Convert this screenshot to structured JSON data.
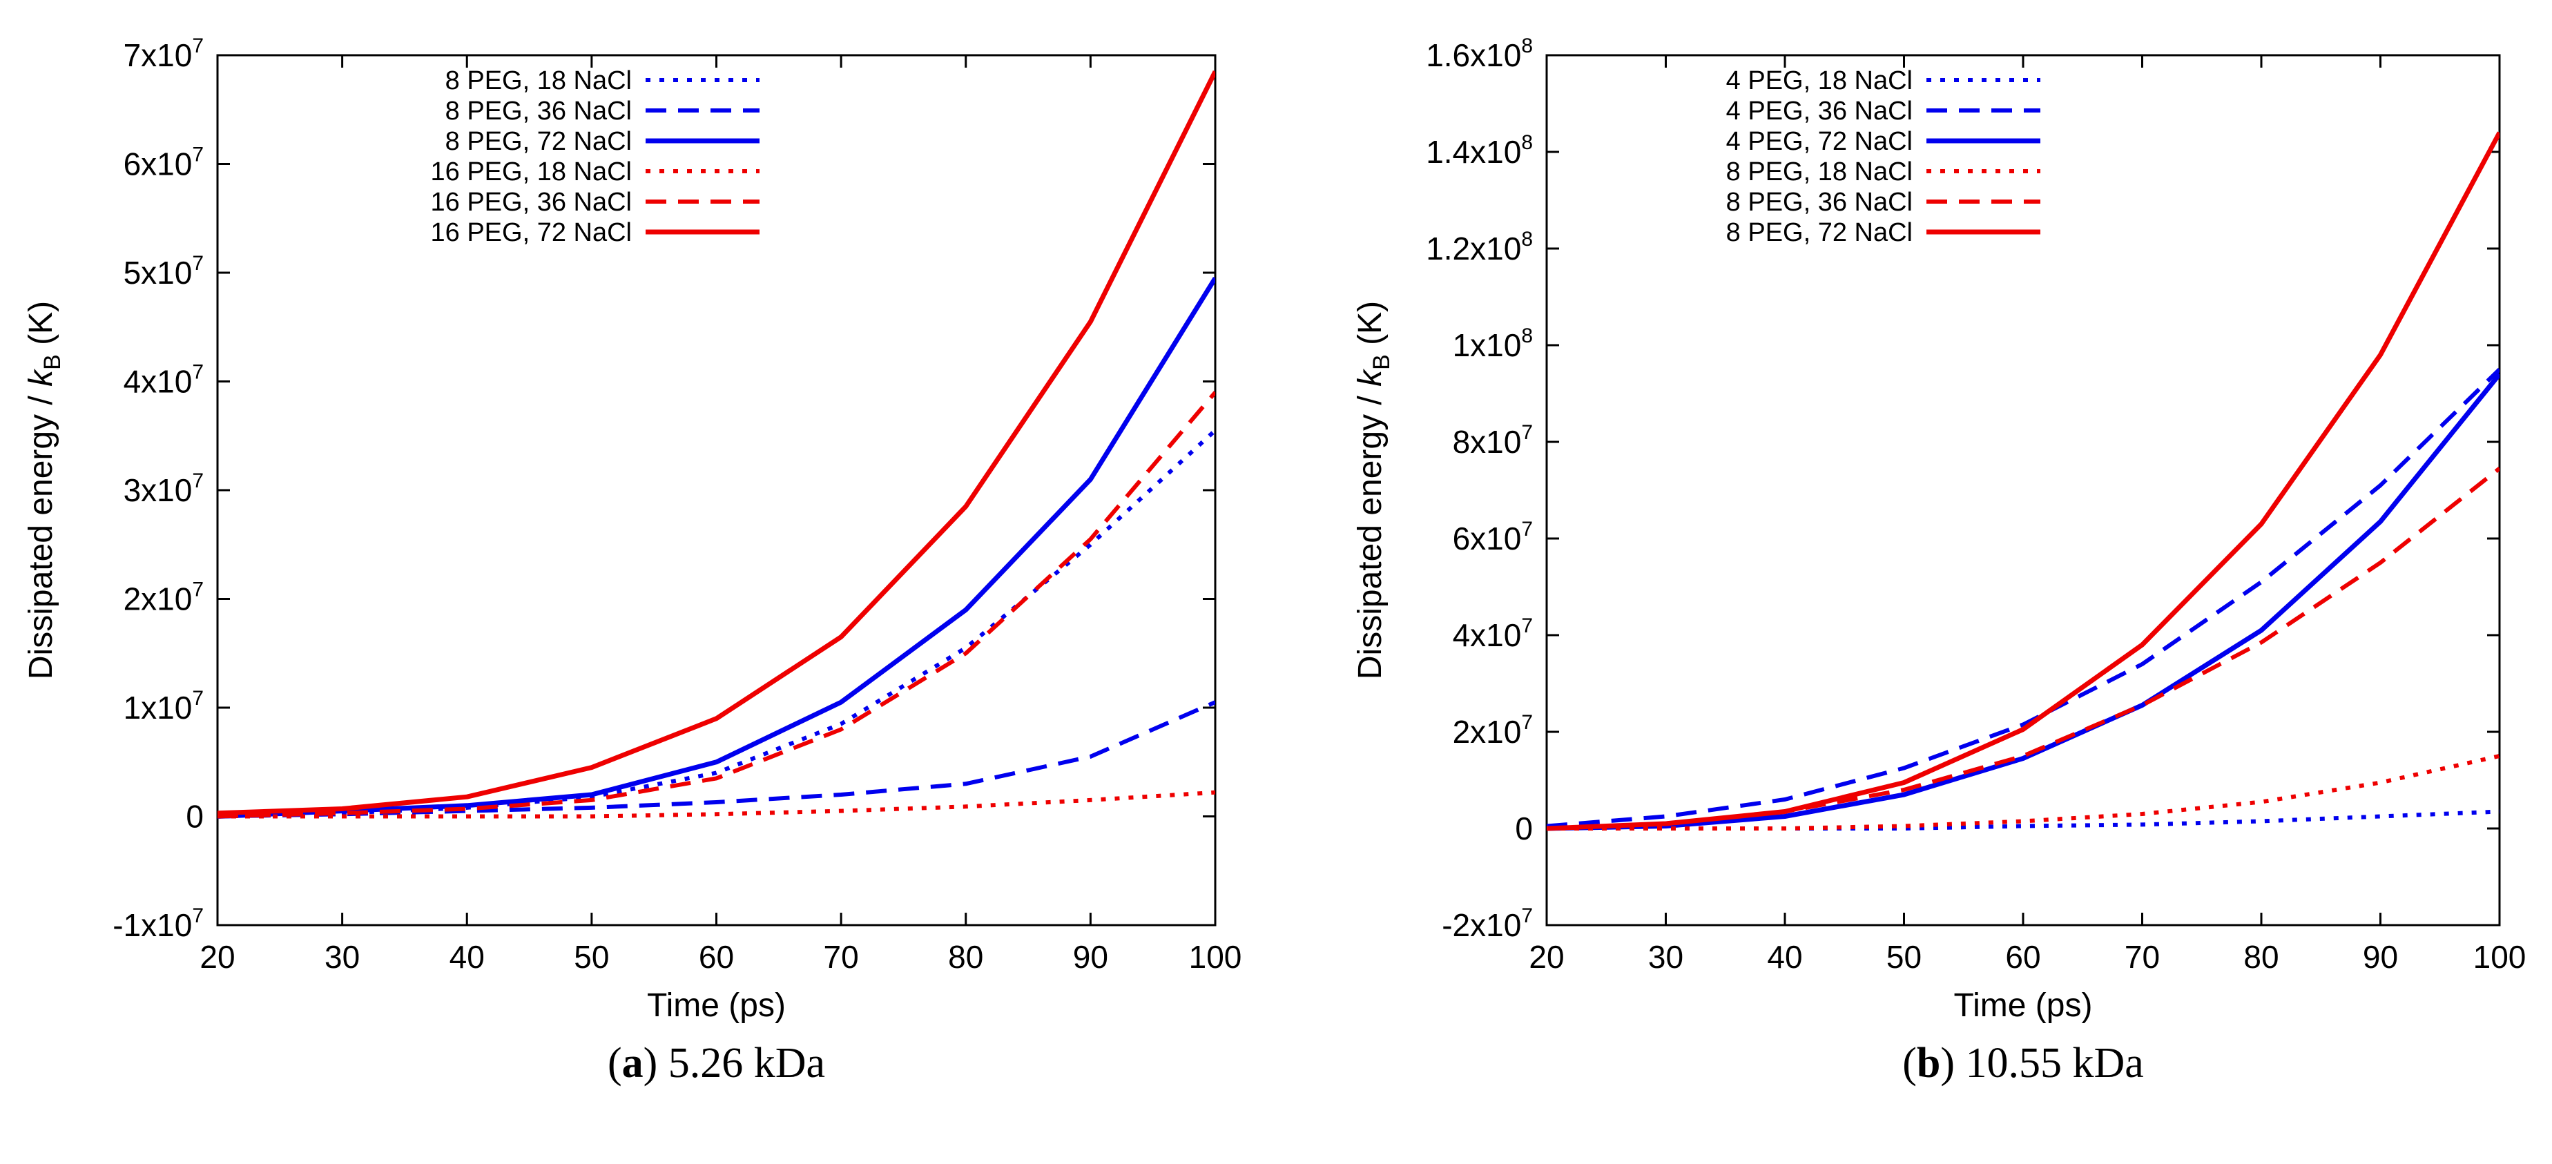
{
  "chart_data": [
    {
      "type": "line",
      "caption": {
        "letter": "a",
        "text": "5.26 kDa"
      },
      "xlabel": "Time (ps)",
      "ylabel_main": "Dissipated energy / ",
      "ylabel_k": "k",
      "ylabel_sub": "B",
      "ylabel_unit": " (K)",
      "xlim": [
        20,
        100
      ],
      "ylim": [
        -10000000,
        70000000
      ],
      "xticks": [
        20,
        30,
        40,
        50,
        60,
        70,
        80,
        90,
        100
      ],
      "yticks": [
        {
          "value": -10000000,
          "mantissa": "-1x10",
          "exp": "7"
        },
        {
          "value": 0,
          "mantissa": "0",
          "exp": ""
        },
        {
          "value": 10000000,
          "mantissa": "1x10",
          "exp": "7"
        },
        {
          "value": 20000000,
          "mantissa": "2x10",
          "exp": "7"
        },
        {
          "value": 30000000,
          "mantissa": "3x10",
          "exp": "7"
        },
        {
          "value": 40000000,
          "mantissa": "4x10",
          "exp": "7"
        },
        {
          "value": 50000000,
          "mantissa": "5x10",
          "exp": "7"
        },
        {
          "value": 60000000,
          "mantissa": "6x10",
          "exp": "7"
        },
        {
          "value": 70000000,
          "mantissa": "7x10",
          "exp": "7"
        }
      ],
      "grid": false,
      "legend_position": "top-left",
      "x": [
        20,
        30,
        40,
        50,
        60,
        70,
        80,
        90,
        100
      ],
      "series": [
        {
          "name": "8 PEG, 18 NaCl",
          "color": "#0000ee",
          "style": "dotted",
          "values": [
            0,
            300000,
            800000,
            1800000,
            4000000,
            8500000,
            15500000,
            25000000,
            35500000
          ]
        },
        {
          "name": "8 PEG, 36 NaCl",
          "color": "#0000ee",
          "style": "dashed",
          "values": [
            0,
            200000,
            500000,
            800000,
            1300000,
            2000000,
            3000000,
            5500000,
            10500000
          ]
        },
        {
          "name": "8 PEG, 72 NaCl",
          "color": "#0000ee",
          "style": "solid",
          "values": [
            0,
            500000,
            1000000,
            2000000,
            5000000,
            10500000,
            19000000,
            31000000,
            49500000
          ]
        },
        {
          "name": "16 PEG, 18 NaCl",
          "color": "#ee0000",
          "style": "dotted",
          "values": [
            0,
            0,
            0,
            0,
            200000,
            500000,
            900000,
            1500000,
            2200000
          ]
        },
        {
          "name": "16 PEG, 36 NaCl",
          "color": "#ee0000",
          "style": "dashed",
          "values": [
            0,
            300000,
            700000,
            1500000,
            3500000,
            8000000,
            15000000,
            25500000,
            39000000
          ]
        },
        {
          "name": "16 PEG, 72 NaCl",
          "color": "#ee0000",
          "style": "solid",
          "values": [
            300000,
            700000,
            1800000,
            4500000,
            9000000,
            16500000,
            28500000,
            45500000,
            68500000
          ]
        }
      ]
    },
    {
      "type": "line",
      "caption": {
        "letter": "b",
        "text": "10.55 kDa"
      },
      "xlabel": "Time (ps)",
      "ylabel_main": "Dissipated energy / ",
      "ylabel_k": "k",
      "ylabel_sub": "B",
      "ylabel_unit": " (K)",
      "xlim": [
        20,
        100
      ],
      "ylim": [
        -20000000,
        160000000
      ],
      "xticks": [
        20,
        30,
        40,
        50,
        60,
        70,
        80,
        90,
        100
      ],
      "yticks": [
        {
          "value": -20000000,
          "mantissa": "-2x10",
          "exp": "7"
        },
        {
          "value": 0,
          "mantissa": "0",
          "exp": ""
        },
        {
          "value": 20000000,
          "mantissa": "2x10",
          "exp": "7"
        },
        {
          "value": 40000000,
          "mantissa": "4x10",
          "exp": "7"
        },
        {
          "value": 60000000,
          "mantissa": "6x10",
          "exp": "7"
        },
        {
          "value": 80000000,
          "mantissa": "8x10",
          "exp": "7"
        },
        {
          "value": 100000000,
          "mantissa": "1x10",
          "exp": "8"
        },
        {
          "value": 120000000,
          "mantissa": "1.2x10",
          "exp": "8"
        },
        {
          "value": 140000000,
          "mantissa": "1.4x10",
          "exp": "8"
        },
        {
          "value": 160000000,
          "mantissa": "1.6x10",
          "exp": "8"
        }
      ],
      "grid": false,
      "legend_position": "top-left",
      "x": [
        20,
        30,
        40,
        50,
        60,
        70,
        80,
        90,
        100
      ],
      "series": [
        {
          "name": "4 PEG, 18 NaCl",
          "color": "#0000ee",
          "style": "dotted",
          "values": [
            0,
            0,
            0,
            0,
            500000,
            800000,
            1500000,
            2500000,
            3500000
          ]
        },
        {
          "name": "4 PEG, 36 NaCl",
          "color": "#0000ee",
          "style": "dashed",
          "values": [
            500000,
            2500000,
            6000000,
            12500000,
            21500000,
            34000000,
            51000000,
            71000000,
            95000000
          ]
        },
        {
          "name": "4 PEG, 72 NaCl",
          "color": "#0000ee",
          "style": "solid",
          "values": [
            0,
            500000,
            2500000,
            7000000,
            14500000,
            25500000,
            41000000,
            63500000,
            94000000
          ]
        },
        {
          "name": "8 PEG, 18 NaCl",
          "color": "#ee0000",
          "style": "dotted",
          "values": [
            0,
            0,
            0,
            500000,
            1500000,
            3000000,
            5500000,
            9500000,
            15000000
          ]
        },
        {
          "name": "8 PEG, 36 NaCl",
          "color": "#ee0000",
          "style": "dashed",
          "values": [
            0,
            1000000,
            3500000,
            8000000,
            15000000,
            25500000,
            38500000,
            55000000,
            74500000
          ]
        },
        {
          "name": "8 PEG, 72 NaCl",
          "color": "#ee0000",
          "style": "solid",
          "values": [
            0,
            1000000,
            3500000,
            9500000,
            20500000,
            38000000,
            63000000,
            98000000,
            144000000
          ]
        }
      ]
    }
  ]
}
